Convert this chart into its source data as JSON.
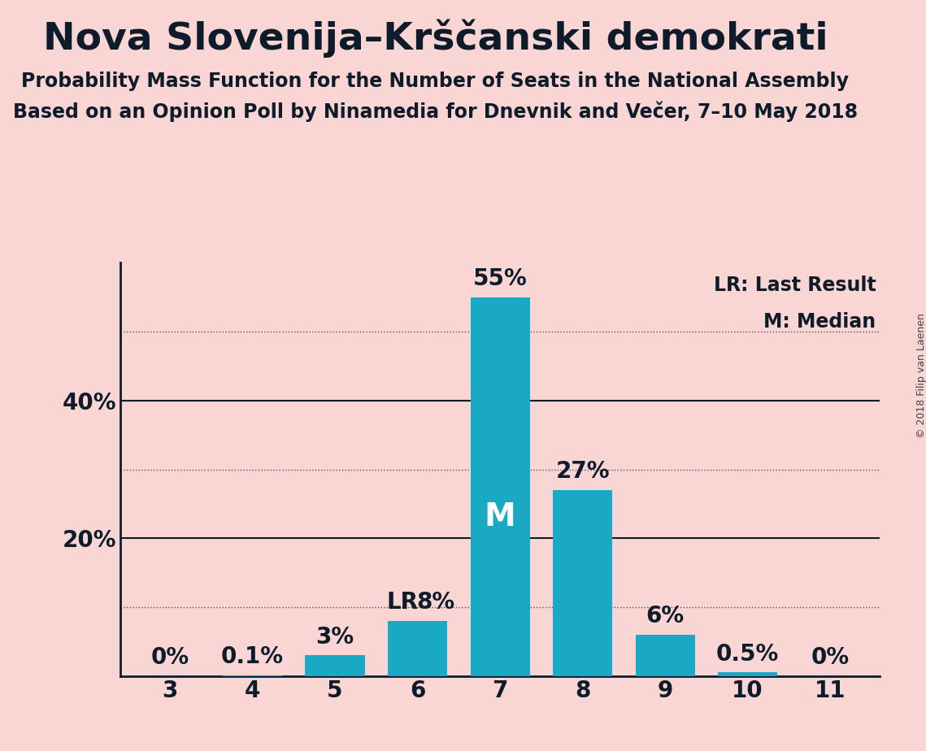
{
  "title": "Nova Slovenija–Krščanski demokrati",
  "subtitle1": "Probability Mass Function for the Number of Seats in the National Assembly",
  "subtitle2": "Based on an Opinion Poll by Ninamedia for Dnevnik and Večer, 7–10 May 2018",
  "copyright": "© 2018 Filip van Laenen",
  "categories": [
    3,
    4,
    5,
    6,
    7,
    8,
    9,
    10,
    11
  ],
  "values": [
    0.0,
    0.1,
    3.0,
    8.0,
    55.0,
    27.0,
    6.0,
    0.5,
    0.0
  ],
  "bar_color": "#1aa9c4",
  "background_color": "#f9d5d3",
  "bar_labels": [
    "0%",
    "0.1%",
    "3%",
    "8%",
    "55%",
    "27%",
    "6%",
    "0.5%",
    "0%"
  ],
  "median_seat": 7,
  "lr_seat": 6,
  "ylim": [
    0,
    60
  ],
  "solid_yticks": [
    20,
    40
  ],
  "dotted_yticks": [
    10,
    30,
    50
  ],
  "ytick_labels_positions": [
    20,
    40
  ],
  "ytick_labels_values": [
    "20%",
    "40%"
  ],
  "legend_lr": "LR: Last Result",
  "legend_m": "M: Median",
  "title_fontsize": 34,
  "subtitle_fontsize": 17,
  "tick_fontsize": 20,
  "bar_label_fontsize": 20,
  "legend_fontsize": 17,
  "copyright_fontsize": 9,
  "text_color": "#0d1b2a"
}
